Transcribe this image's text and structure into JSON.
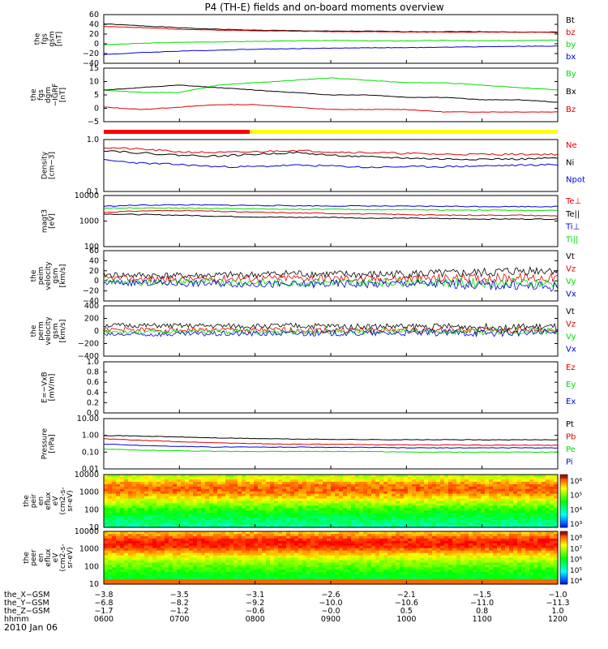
{
  "title": "P4 (TH-E) fields and on-board moments overview",
  "colors": {
    "black": "#000000",
    "red": "#e00000",
    "green": "#00dd00",
    "blue": "#0000dd",
    "yellow": "#ffff00"
  },
  "chart_data": [
    {
      "type": "line",
      "id": "fgs",
      "ylabel": [
        "the",
        "fgs",
        "gsm",
        "[nT]"
      ],
      "yticks": [
        "60",
        "40",
        "20",
        "0",
        "−20",
        "−40"
      ],
      "ylim": [
        -40,
        60
      ],
      "series": [
        {
          "name": "Bt",
          "color": "black",
          "values": [
            41,
            37,
            33,
            30,
            28,
            27,
            26,
            26,
            25,
            25,
            25,
            24,
            24
          ]
        },
        {
          "name": "bz",
          "color": "red",
          "values": [
            36,
            33,
            30,
            28,
            27,
            26,
            25,
            25,
            24,
            24,
            24,
            24,
            23
          ]
        },
        {
          "name": "by",
          "color": "green",
          "values": [
            -2,
            1,
            3,
            4,
            5,
            6,
            7,
            6,
            6,
            7,
            6,
            7,
            8
          ]
        },
        {
          "name": "bx",
          "color": "blue",
          "values": [
            -22,
            -18,
            -15,
            -13,
            -11,
            -10,
            -9,
            -8,
            -8,
            -7,
            -6,
            -5,
            -5
          ]
        }
      ]
    },
    {
      "type": "line",
      "id": "fgs_dgb",
      "ylabel": [
        "the",
        "fgs",
        "dgm",
        "−IGRF",
        "[nT]"
      ],
      "yticks": [
        "15",
        "10",
        "5",
        "0",
        "−5"
      ],
      "ylim": [
        -7,
        15
      ],
      "series": [
        {
          "name": "By",
          "color": "green",
          "values": [
            6,
            5,
            5,
            8,
            9,
            10,
            11,
            10,
            9,
            9,
            8,
            7,
            6
          ]
        },
        {
          "name": "Bx",
          "color": "black",
          "values": [
            6,
            7,
            8,
            7,
            6,
            5,
            4,
            4,
            3,
            3,
            2,
            2,
            1
          ]
        },
        {
          "name": "Bz",
          "color": "red",
          "values": [
            -1,
            -2,
            -1,
            0,
            0,
            -1,
            -2,
            -2,
            -2,
            -3,
            -3,
            -3,
            -3
          ]
        }
      ]
    },
    {
      "type": "line",
      "id": "density",
      "ylabel": [
        "Density",
        "[cm−3]"
      ],
      "yticks": [
        "1.0",
        "0.1"
      ],
      "ylim": [
        0.1,
        1.0
      ],
      "scale": "log",
      "series": [
        {
          "name": "Ne",
          "color": "red",
          "values": [
            0.7,
            0.65,
            0.58,
            0.56,
            0.58,
            0.62,
            0.58,
            0.56,
            0.54,
            0.52,
            0.52,
            0.52,
            0.52
          ]
        },
        {
          "name": "Ni",
          "color": "black",
          "values": [
            0.62,
            0.55,
            0.5,
            0.48,
            0.52,
            0.56,
            0.5,
            0.46,
            0.44,
            0.42,
            0.42,
            0.42,
            0.44
          ]
        },
        {
          "name": "Npot",
          "color": "blue",
          "values": [
            0.4,
            0.35,
            0.33,
            0.3,
            0.3,
            0.32,
            0.31,
            0.29,
            0.3,
            0.3,
            0.31,
            0.32,
            0.33
          ]
        }
      ]
    },
    {
      "type": "line",
      "id": "temperature",
      "ylabel": [
        "magt3",
        "[eV]"
      ],
      "yticks": [
        "10000",
        "1000",
        "100"
      ],
      "ylim": [
        100,
        10000
      ],
      "scale": "log",
      "series": [
        {
          "name": "Te⊥",
          "color": "red",
          "values": [
            2200,
            2500,
            2600,
            2400,
            2200,
            2100,
            2000,
            1900,
            1800,
            1700,
            1700,
            1700,
            1600
          ]
        },
        {
          "name": "Te||",
          "color": "black",
          "values": [
            1900,
            1800,
            1700,
            1550,
            1450,
            1400,
            1400,
            1300,
            1300,
            1250,
            1200,
            1200,
            1200
          ]
        },
        {
          "name": "Ti⊥",
          "color": "blue",
          "values": [
            3800,
            4200,
            4300,
            4200,
            4100,
            4000,
            3900,
            3900,
            3800,
            3800,
            3700,
            3700,
            3700
          ]
        },
        {
          "name": "Ti||",
          "color": "green",
          "values": [
            3200,
            3300,
            3200,
            3100,
            3000,
            2900,
            2900,
            2800,
            2800,
            2700,
            2700,
            2600,
            2600
          ]
        }
      ]
    },
    {
      "type": "line",
      "id": "peim_vel",
      "ylabel": [
        "the",
        "peim",
        "velocity",
        "gsm",
        "[km/s]"
      ],
      "yticks": [
        "60",
        "40",
        "20",
        "0",
        "−20",
        "−40"
      ],
      "ylim": [
        -40,
        60
      ],
      "series": [
        {
          "name": "Vt",
          "color": "black",
          "values": [
            12,
            11,
            10,
            11,
            12,
            15,
            13,
            12,
            14,
            14,
            16,
            20,
            22
          ]
        },
        {
          "name": "Vz",
          "color": "red",
          "values": [
            5,
            4,
            3,
            4,
            5,
            6,
            5,
            4,
            4,
            5,
            5,
            6,
            6
          ]
        },
        {
          "name": "Vy",
          "color": "green",
          "values": [
            -2,
            -3,
            -2,
            -2,
            -3,
            -4,
            -3,
            -3,
            -2,
            -3,
            -4,
            -4,
            -5
          ]
        },
        {
          "name": "Vx",
          "color": "blue",
          "values": [
            -4,
            -4,
            -5,
            -5,
            -6,
            -8,
            -6,
            -6,
            -5,
            -6,
            -8,
            -10,
            -12
          ]
        }
      ]
    },
    {
      "type": "line",
      "id": "perm_vel",
      "ylabel": [
        "the",
        "perm",
        "velocity",
        "gsm",
        "[km/s]"
      ],
      "yticks": [
        "400",
        "200",
        "0",
        "−200",
        "−400"
      ],
      "ylim": [
        -400,
        400
      ],
      "series": [
        {
          "name": "Vt",
          "color": "black",
          "values": [
            90,
            85,
            80,
            80,
            75,
            80,
            75,
            70,
            70,
            70,
            65,
            60,
            60
          ]
        },
        {
          "name": "Vz",
          "color": "red",
          "values": [
            20,
            18,
            15,
            15,
            15,
            15,
            12,
            12,
            10,
            10,
            10,
            10,
            10
          ]
        },
        {
          "name": "Vy",
          "color": "green",
          "values": [
            -10,
            -12,
            -10,
            -10,
            -10,
            -10,
            -8,
            -8,
            -8,
            -8,
            -8,
            -6,
            -6
          ]
        },
        {
          "name": "Vx",
          "color": "blue",
          "values": [
            -60,
            -55,
            -50,
            -45,
            -40,
            -40,
            -35,
            -35,
            -30,
            -30,
            -30,
            -30,
            -30
          ]
        }
      ]
    },
    {
      "type": "line",
      "id": "efield",
      "ylabel": [
        "E=−VxB",
        "[mV/m]"
      ],
      "yticks": [
        "1.0",
        "0.8",
        "0.6",
        "0.4",
        "0.2",
        "0.0"
      ],
      "ylim": [
        0,
        1
      ],
      "series": [
        {
          "name": "Ez",
          "color": "red",
          "values": []
        },
        {
          "name": "Ey",
          "color": "green",
          "values": []
        },
        {
          "name": "Ex",
          "color": "blue",
          "values": []
        }
      ]
    },
    {
      "type": "line",
      "id": "pressure",
      "ylabel": [
        "Pressure",
        "[nPa]"
      ],
      "yticks": [
        "10.00",
        "1.00",
        "0.10",
        "0.01"
      ],
      "ylim": [
        0.01,
        10
      ],
      "scale": "log",
      "series": [
        {
          "name": "Pt",
          "color": "black",
          "values": [
            1.0,
            0.9,
            0.8,
            0.7,
            0.65,
            0.6,
            0.58,
            0.56,
            0.55,
            0.55,
            0.54,
            0.54,
            0.55
          ]
        },
        {
          "name": "Pb",
          "color": "red",
          "values": [
            0.62,
            0.5,
            0.42,
            0.36,
            0.32,
            0.3,
            0.29,
            0.28,
            0.27,
            0.27,
            0.26,
            0.26,
            0.26
          ]
        },
        {
          "name": "Pe",
          "color": "green",
          "values": [
            0.15,
            0.13,
            0.12,
            0.11,
            0.11,
            0.11,
            0.11,
            0.11,
            0.1,
            0.1,
            0.1,
            0.1,
            0.1
          ]
        },
        {
          "name": "Pi",
          "color": "blue",
          "values": [
            0.3,
            0.25,
            0.22,
            0.2,
            0.2,
            0.2,
            0.19,
            0.19,
            0.18,
            0.18,
            0.18,
            0.18,
            0.18
          ]
        }
      ]
    },
    {
      "type": "heatmap",
      "id": "peir",
      "ylabel": [
        "the",
        "peir",
        "en",
        "eflux",
        "eV",
        "(cm2-s-",
        "sr-eV)"
      ],
      "yticks": [
        "10000",
        "1000",
        "100",
        "10"
      ],
      "ylim": [
        10,
        30000
      ],
      "scale": "log",
      "colorbar": {
        "ticks": [
          "10⁶",
          "10⁵",
          "10⁴",
          "10³"
        ]
      }
    },
    {
      "type": "heatmap",
      "id": "peer",
      "ylabel": [
        "the",
        "peer",
        "en",
        "eflux",
        "eV",
        "(cm2-s-",
        "sr-eV)"
      ],
      "yticks": [
        "10000",
        "1000",
        "100",
        "10"
      ],
      "ylim": [
        10,
        30000
      ],
      "scale": "log",
      "colorbar": {
        "ticks": [
          "10⁸",
          "10⁷",
          "10⁶",
          "10⁵",
          "10⁴"
        ]
      }
    }
  ],
  "xaxis": {
    "rows": [
      {
        "label": "the_X−GSM",
        "values": [
          "−3.8",
          "−3.5",
          "−3.1",
          "−2.6",
          "−2.1",
          "−1.5",
          "−1.0"
        ]
      },
      {
        "label": "the_Y−GSM",
        "values": [
          "−6.8",
          "−8.2",
          "−9.2",
          "−10.0",
          "−10.6",
          "−11.0",
          "−11.3"
        ]
      },
      {
        "label": "the_Z−GSM",
        "values": [
          "−1.7",
          "−1.2",
          "−0.6",
          "−0.0",
          "0.5",
          "0.8",
          "1.0"
        ]
      },
      {
        "label": "hhmm",
        "values": [
          "0600",
          "0700",
          "0800",
          "0900",
          "1000",
          "1100",
          "1200"
        ]
      }
    ],
    "date": "2010 Jan 06"
  },
  "legend_labels": {
    "fgs": [
      "Bt",
      "bz",
      "by",
      "bx"
    ],
    "fgs_dgb": [
      "By",
      "Bx",
      "Bz"
    ],
    "density": [
      "Ne",
      "Ni",
      "Npot"
    ],
    "temperature": [
      "Te⊥",
      "Te||",
      "Ti⊥",
      "Ti||"
    ],
    "peim_vel": [
      "Vt",
      "Vz",
      "Vy",
      "Vx"
    ],
    "perm_vel": [
      "Vt",
      "Vz",
      "Vy",
      "Vx"
    ],
    "efield": [
      "Ez",
      "Ey",
      "Ex"
    ],
    "pressure": [
      "Pt",
      "Pb",
      "Pe",
      "Pi"
    ]
  }
}
